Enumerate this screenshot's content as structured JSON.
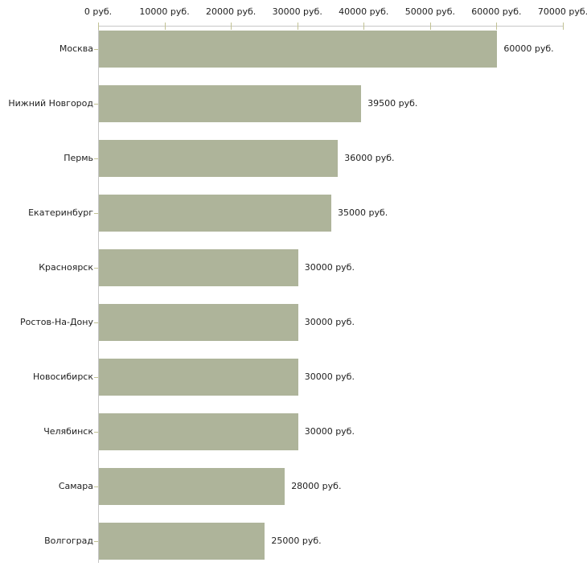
{
  "chart_data": {
    "type": "bar",
    "orientation": "horizontal",
    "unit": "руб.",
    "categories": [
      "Москва",
      "Нижний Новгород",
      "Пермь",
      "Екатеринбург",
      "Красноярск",
      "Ростов-На-Дону",
      "Новосибирск",
      "Челябинск",
      "Самара",
      "Волгоград"
    ],
    "values": [
      60000,
      39500,
      36000,
      35000,
      30000,
      30000,
      30000,
      30000,
      28000,
      25000
    ],
    "value_labels": [
      "60000 руб.",
      "39500 руб.",
      "36000 руб.",
      "35000 руб.",
      "30000 руб.",
      "30000 руб.",
      "30000 руб.",
      "30000 руб.",
      "28000 руб.",
      "25000 руб."
    ],
    "x_ticks": {
      "values": [
        0,
        10000,
        20000,
        30000,
        40000,
        50000,
        60000,
        70000
      ],
      "labels": [
        "0 руб.",
        "10000 руб.",
        "20000 руб.",
        "30000 руб.",
        "40000 руб.",
        "50000 руб.",
        "60000 руб.",
        "70000 руб."
      ]
    },
    "xlim": [
      0,
      70000
    ],
    "grid": false,
    "legend": "none",
    "colors": {
      "bar": "#aeb49a",
      "axis": "#c6c6c6",
      "tick": "#c2c294",
      "text": "#1e1e1e",
      "background": "#ffffff"
    }
  }
}
